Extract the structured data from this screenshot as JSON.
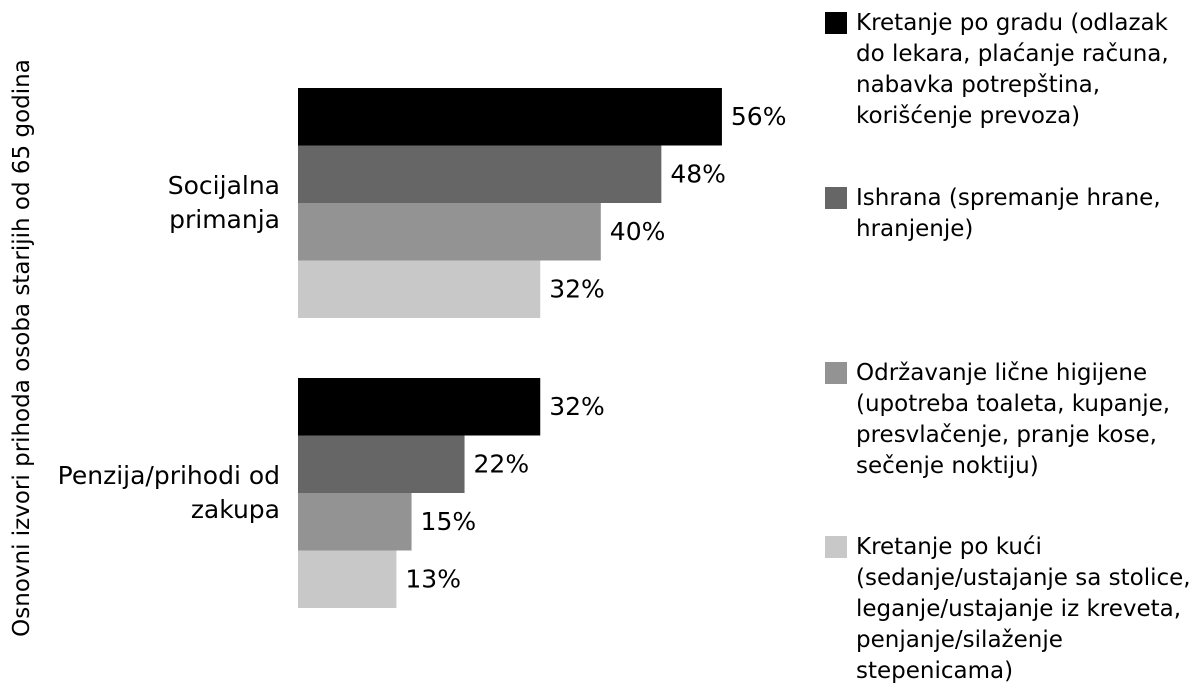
{
  "chart_data": {
    "type": "bar",
    "orientation": "horizontal",
    "y_label": "Osnovni izvori prihoda osoba starijih od 65 godina",
    "categories": [
      "Socijalna primanja",
      "Penzija/prihodi od zakupa"
    ],
    "series": [
      {
        "name": "Kretanje po gradu (odlazak do lekara, plaćanje računa, nabavka potrepština, korišćenje prevoza)",
        "color": "#000000",
        "values": [
          56,
          32
        ],
        "value_labels": [
          "56%",
          "32%"
        ]
      },
      {
        "name": "Ishrana (spremanje hrane, hranjenje)",
        "color": "#666666",
        "values": [
          48,
          22
        ],
        "value_labels": [
          "48%",
          "22%"
        ]
      },
      {
        "name": "Održavanje lične higijene (upotreba toaleta, kupanje, presvlačenje, pranje kose, sečenje noktiju)",
        "color": "#939393",
        "values": [
          40,
          15
        ],
        "value_labels": [
          "40%",
          "15%"
        ]
      },
      {
        "name": "Kretanje po kući (sedanje/ustajanje sa stolice, leganje/ustajanje iz kreveta, penjanje/silaženje stepenicama)",
        "color": "#c8c8c8",
        "values": [
          32,
          13
        ],
        "value_labels": [
          "32%",
          "13%"
        ]
      }
    ]
  }
}
